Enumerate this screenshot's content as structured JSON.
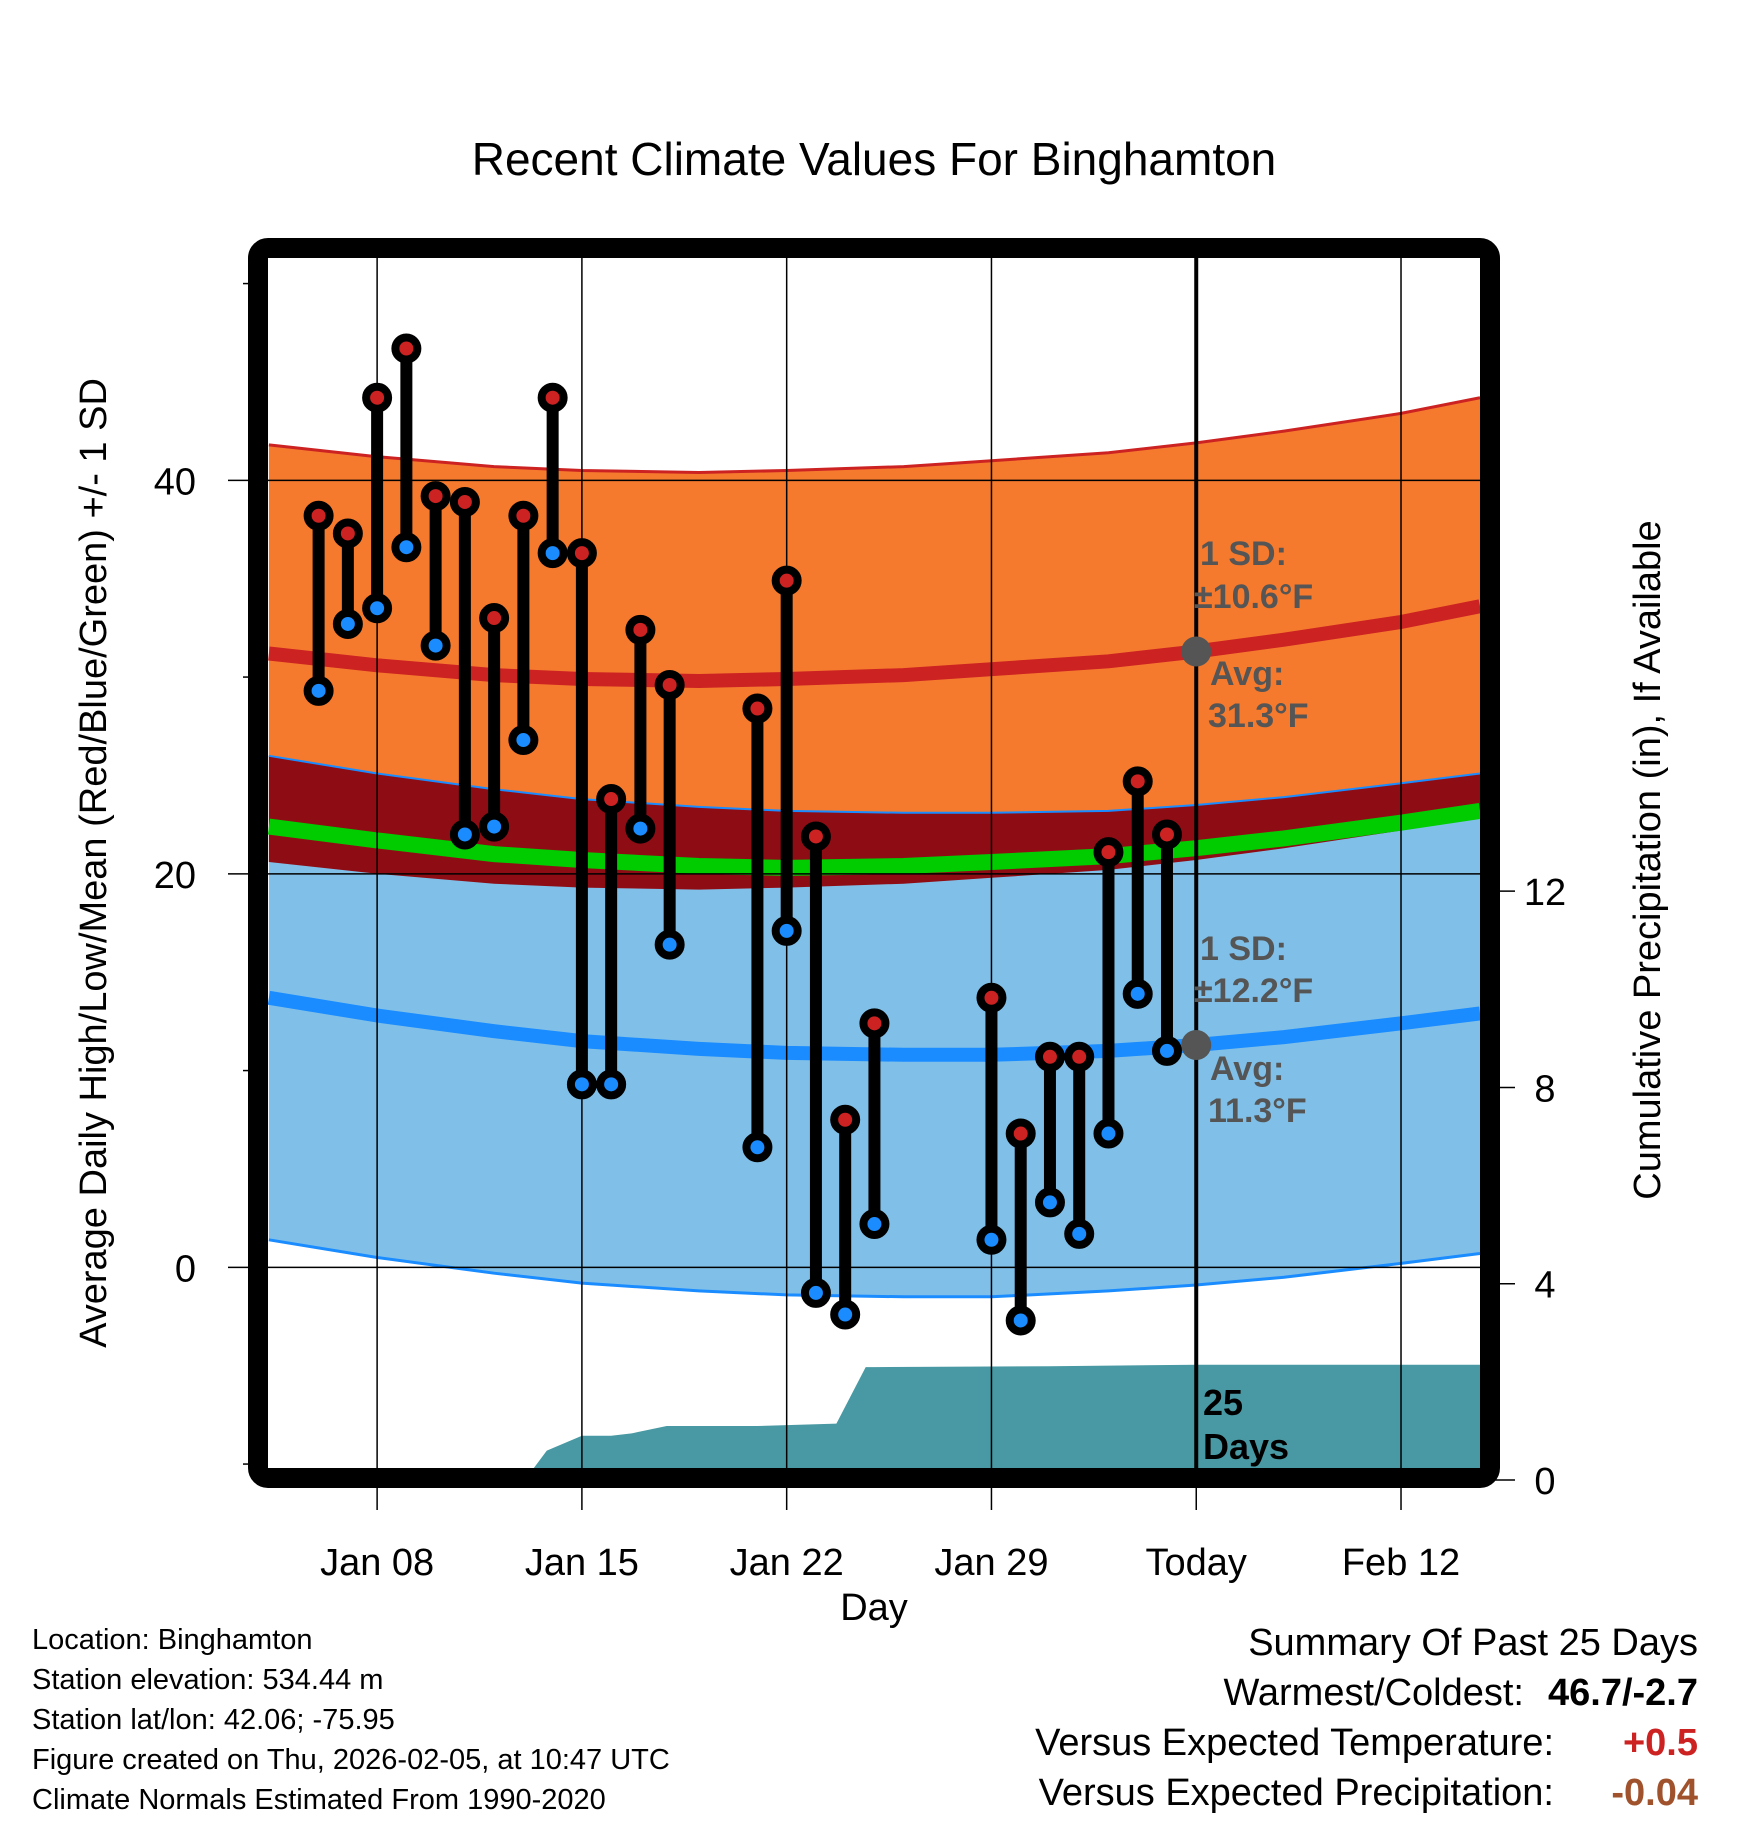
{
  "chart_data": {
    "type": "line",
    "title": "Recent Climate Values For Binghamton",
    "xlabel": "Day",
    "ylabel": "Average Daily High/Low/Mean (Red/Blue/Green) +/- 1 SD",
    "ylabel_right": "Cumulative Precipitation (in), If Available",
    "x_range_days": [
      -31.73,
      9.7
    ],
    "x_reference": "Today = 2026-02-05 (day 0)",
    "ylim": [
      -10.2,
      51.3
    ],
    "ylim_right": [
      0,
      24.7
    ],
    "yticks": [
      0,
      20,
      40
    ],
    "yticks_minor": [
      -10,
      10,
      30,
      50
    ],
    "yticks_right": [
      0,
      4,
      8,
      12
    ],
    "xticks": [
      {
        "day": -28,
        "label": "Jan 08"
      },
      {
        "day": -21,
        "label": "Jan 15"
      },
      {
        "day": -14,
        "label": "Jan 22"
      },
      {
        "day": -7,
        "label": "Jan 29"
      },
      {
        "day": 0,
        "label": "Today"
      },
      {
        "day": 7,
        "label": "Feb 12"
      }
    ],
    "grid": true,
    "colors": {
      "high_band": "#f57a2e",
      "high_line": "#cc2222",
      "overlap_band": "#8e0d15",
      "low_band": "#80c0e8",
      "low_line": "#1a8cff",
      "mean_line": "#00cc00",
      "precip": "#4899a3",
      "high_marker": "#cc2222",
      "low_marker": "#1a8cff",
      "anno_marker": "#555555",
      "precip_diff": "#a0522d",
      "temp_diff": "#cc2222"
    },
    "normals": {
      "days": [
        -31.7,
        -28,
        -24,
        -21,
        -17,
        -14,
        -10,
        -7,
        -3,
        0,
        3,
        7,
        9.7
      ],
      "high_avg": [
        31.2,
        30.6,
        30.1,
        29.9,
        29.8,
        29.9,
        30.1,
        30.4,
        30.8,
        31.3,
        31.9,
        32.8,
        33.6
      ],
      "high_sd": [
        10.6,
        10.6,
        10.6,
        10.6,
        10.6,
        10.6,
        10.6,
        10.6,
        10.6,
        10.6,
        10.6,
        10.6,
        10.6
      ],
      "low_avg": [
        13.7,
        12.8,
        12.0,
        11.5,
        11.1,
        10.9,
        10.8,
        10.8,
        11.0,
        11.3,
        11.7,
        12.4,
        12.9
      ],
      "low_sd": [
        12.3,
        12.3,
        12.3,
        12.3,
        12.3,
        12.3,
        12.3,
        12.3,
        12.2,
        12.2,
        12.2,
        12.2,
        12.2
      ],
      "mean": [
        22.4,
        21.7,
        21.0,
        20.7,
        20.4,
        20.3,
        20.4,
        20.6,
        20.9,
        21.3,
        21.8,
        22.6,
        23.2
      ]
    },
    "daily": [
      {
        "day": -30,
        "high": 38.2,
        "low": 29.3
      },
      {
        "day": -29,
        "high": 37.3,
        "low": 32.7
      },
      {
        "day": -28,
        "high": 44.2,
        "low": 33.5
      },
      {
        "day": -27,
        "high": 46.7,
        "low": 36.6
      },
      {
        "day": -26,
        "high": 39.2,
        "low": 31.6
      },
      {
        "day": -25,
        "high": 38.9,
        "low": 22.0
      },
      {
        "day": -24,
        "high": 33.0,
        "low": 22.4
      },
      {
        "day": -23,
        "high": 38.2,
        "low": 26.8
      },
      {
        "day": -22,
        "high": 44.2,
        "low": 36.3
      },
      {
        "day": -21,
        "high": 36.3,
        "low": 9.3
      },
      {
        "day": -20,
        "high": 23.8,
        "low": 9.3
      },
      {
        "day": -19,
        "high": 32.4,
        "low": 22.3
      },
      {
        "day": -18,
        "high": 29.6,
        "low": 16.4
      },
      {
        "day": -15,
        "high": 28.4,
        "low": 6.1
      },
      {
        "day": -14,
        "high": 34.9,
        "low": 17.1
      },
      {
        "day": -13,
        "high": 21.9,
        "low": -1.3
      },
      {
        "day": -12,
        "high": 7.5,
        "low": -2.4
      },
      {
        "day": -11,
        "high": 12.4,
        "low": 2.2
      },
      {
        "day": -7,
        "high": 13.7,
        "low": 1.4
      },
      {
        "day": -6,
        "high": 6.8,
        "low": -2.7
      },
      {
        "day": -5,
        "high": 10.7,
        "low": 3.3
      },
      {
        "day": -4,
        "high": 10.7,
        "low": 1.7
      },
      {
        "day": -3,
        "high": 21.1,
        "low": 6.8
      },
      {
        "day": -2,
        "high": 24.7,
        "low": 13.9
      },
      {
        "day": -1,
        "high": 22.0,
        "low": 11.0
      }
    ],
    "precip_cumulative": {
      "days": [
        -31.73,
        -26.6,
        -26.1,
        -25.4,
        -24,
        -22.7,
        -22.2,
        -21,
        -20,
        -19.3,
        -18.1,
        -18.0,
        -15,
        -12.3,
        -11.3,
        -11.0,
        -5,
        0,
        9.7
      ],
      "values": [
        0,
        0,
        0.08,
        0.2,
        0.2,
        0.2,
        0.6,
        0.9,
        0.9,
        0.95,
        1.1,
        1.1,
        1.1,
        1.15,
        2.3,
        2.3,
        2.32,
        2.35,
        2.35
      ]
    },
    "annotations": {
      "high_sd": "1 SD:",
      "high_sd_val": "±10.6°F",
      "high_avg": "Avg:",
      "high_avg_val": "31.3°F",
      "low_sd": "1 SD:",
      "low_sd_val": "±12.2°F",
      "low_avg": "Avg:",
      "low_avg_val": "11.3°F",
      "days_num": "25",
      "days_word": "Days",
      "today_high_avg": 31.3,
      "today_low_avg": 11.3
    }
  },
  "footer": {
    "location": "Location: Binghamton",
    "elevation": "Station elevation: 534.44 m",
    "latlon": "Station lat/lon: 42.06; -75.95",
    "created": "Figure created on Thu, 2026-02-05, at 10:47 UTC",
    "normals": "Climate Normals Estimated From 1990-2020"
  },
  "summary": {
    "title": "Summary Of Past 25 Days",
    "warm_cold_label": "Warmest/Coldest:",
    "warm_cold_value": "46.7/-2.7",
    "temp_label": "Versus Expected Temperature:",
    "temp_value": "+0.5",
    "precip_label": "Versus Expected Precipitation:",
    "precip_value": "-0.04"
  }
}
